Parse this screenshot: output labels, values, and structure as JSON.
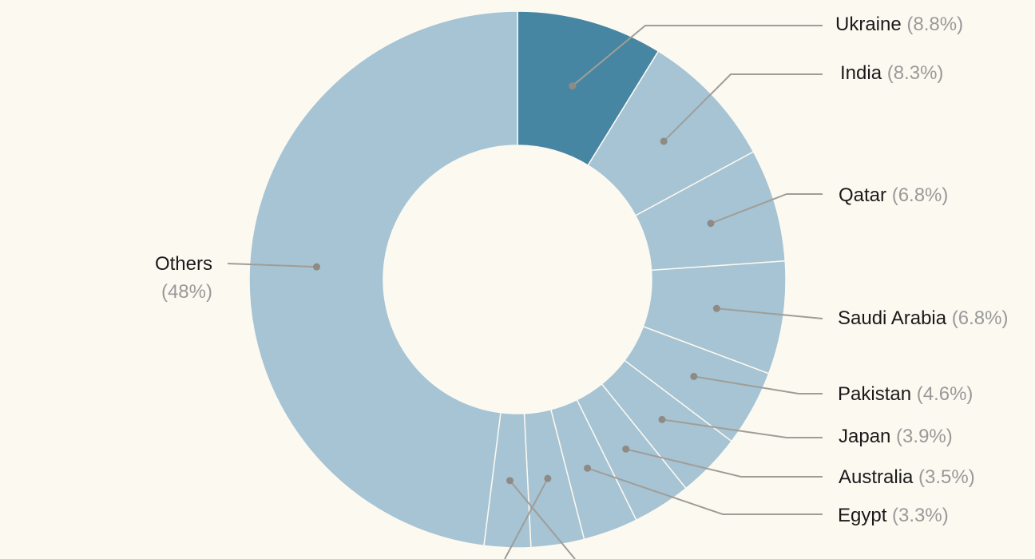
{
  "chart_data": {
    "type": "pie",
    "style": "donut",
    "title": "",
    "slices": [
      {
        "label": "Ukraine",
        "value": 8.8,
        "display": "(8.8%)",
        "highlight": true
      },
      {
        "label": "India",
        "value": 8.3,
        "display": "(8.3%)"
      },
      {
        "label": "Qatar",
        "value": 6.8,
        "display": "(6.8%)"
      },
      {
        "label": "Saudi Arabia",
        "value": 6.8,
        "display": "(6.8%)"
      },
      {
        "label": "Pakistan",
        "value": 4.6,
        "display": "(4.6%)"
      },
      {
        "label": "Japan",
        "value": 3.9,
        "display": "(3.9%)"
      },
      {
        "label": "Australia",
        "value": 3.5,
        "display": "(3.5%)"
      },
      {
        "label": "Egypt",
        "value": 3.3,
        "display": "(3.3%)"
      },
      {
        "label": "",
        "value": 3.2,
        "display": ""
      },
      {
        "label": "",
        "value": 2.8,
        "display": ""
      },
      {
        "label": "Others",
        "value": 48,
        "display": "(48%)"
      }
    ],
    "colors": {
      "highlight": "#4786a3",
      "default": "#a6c4d4",
      "separator": "#fcf9f1",
      "leader": "#a09d97",
      "dot": "#8f8a83",
      "background": "#fcf9f1"
    }
  }
}
